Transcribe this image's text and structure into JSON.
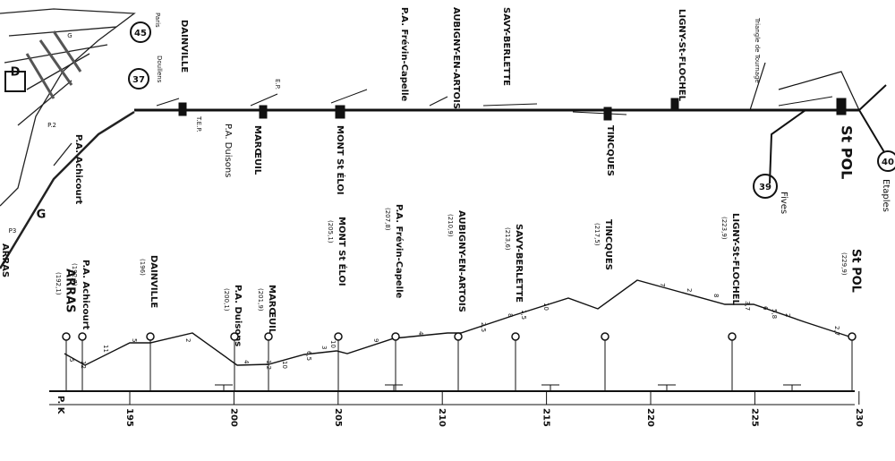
{
  "schematic": {
    "labels": [
      "Paris",
      "45",
      "Doullens",
      "37",
      "DAINVILLE",
      "P.A. Achicourt",
      "P.A. Duisons",
      "MARŒUIL",
      "MONT St ÉLOI",
      "P.A. Frévin-Capelle",
      "AUBIGNY-EN-ARTOIS",
      "SAVY-BERLETTE",
      "TINCQUES",
      "LIGNY-St-FLOCHEL",
      "Triangle de Tournage",
      "St POL",
      "39",
      "Fives",
      "40",
      "Etaples",
      "D",
      "G",
      "G",
      "ARRAS",
      "P.2",
      "P3",
      "E.P.",
      "T.E.P."
    ]
  },
  "profile": {
    "stations": [
      {
        "name": "ARRAS",
        "pk": "(192,1)"
      },
      {
        "name": "P.A. Achicourt",
        "pk": "(192,7)"
      },
      {
        "name": "DAINVILLE",
        "pk": "(196)"
      },
      {
        "name": "P.A. Duisons",
        "pk": "(200,1)"
      },
      {
        "name": "MARŒUIL",
        "pk": "(201,9)"
      },
      {
        "name": "MONT St ÉLOI",
        "pk": "(205,1)"
      },
      {
        "name": "P.A. Frévin-Capelle",
        "pk": "(207,8)"
      },
      {
        "name": "AUBIGNY-EN-ARTOIS",
        "pk": "(210,9)"
      },
      {
        "name": "SAVY-BERLETTE",
        "pk": "(213,6)"
      },
      {
        "name": "TINCQUES",
        "pk": "(217,5)"
      },
      {
        "name": "LIGNY-St-FLOCHEL",
        "pk": "(223,9)"
      },
      {
        "name": "St POL",
        "pk": "(229,9)"
      }
    ],
    "gradients": [
      "5",
      "12",
      "11",
      "5",
      "2",
      "4",
      "1,2",
      "10",
      "6,5",
      "3",
      "10",
      "9",
      "4",
      "2,5",
      "8",
      "1,5",
      "10",
      "7",
      "2",
      "8",
      "3,7",
      "6",
      "5,8",
      "2",
      "2,7"
    ],
    "axis": {
      "label": "P. K",
      "ticks": [
        "195",
        "200",
        "205",
        "210",
        "215",
        "220",
        "225",
        "230"
      ]
    }
  }
}
